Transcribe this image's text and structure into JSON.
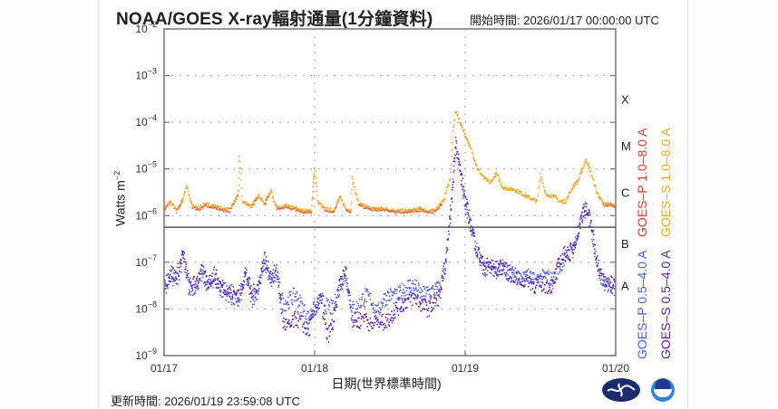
{
  "header": {
    "title": "NOAA/GOES X-ray輻射通量(1分鐘資料)",
    "start_label": "開始時間: 2026/01/17 00:00:00 UTC"
  },
  "footer": {
    "updated_label": "更新時間: 2026/01/19 23:59:08 UTC",
    "logos": [
      "cwa-logo-icon",
      "noaa-logo-icon"
    ]
  },
  "colors": {
    "goes_p_long": "#e8392e",
    "goes_s_long": "#f5a623",
    "goes_p_short": "#4a5cf0",
    "goes_s_short": "#5b1fb0",
    "frame": "#777777",
    "grid": "#999999"
  },
  "chart_data": {
    "type": "scatter",
    "title": "NOAA/GOES X-ray輻射通量(1分鐘資料)",
    "xlabel": "日期(世界標準時間)",
    "ylabel": "Watts m⁻²",
    "yscale": "log",
    "ylim": [
      1e-09,
      0.01
    ],
    "xlim": [
      0,
      72
    ],
    "x_unit": "hours since 2026/01/17 00:00 UTC",
    "x_ticks": [
      {
        "x": 0,
        "label": "01/17"
      },
      {
        "x": 24,
        "label": "01/18"
      },
      {
        "x": 48,
        "label": "01/19"
      },
      {
        "x": 72,
        "label": "01/20"
      }
    ],
    "y_ticks": [
      {
        "exp": -2,
        "label": "10",
        "sup": "−2"
      },
      {
        "exp": -3,
        "label": "10",
        "sup": "−3"
      },
      {
        "exp": -4,
        "label": "10",
        "sup": "−4"
      },
      {
        "exp": -5,
        "label": "10",
        "sup": "−5"
      },
      {
        "exp": -6,
        "label": "10",
        "sup": "−6"
      },
      {
        "exp": -7,
        "label": "10",
        "sup": "−7"
      },
      {
        "exp": -8,
        "label": "10",
        "sup": "−8"
      },
      {
        "exp": -9,
        "label": "10",
        "sup": "−9"
      }
    ],
    "flare_classes": [
      {
        "label": "X",
        "exp": -3.5
      },
      {
        "label": "M",
        "exp": -4.5
      },
      {
        "label": "C",
        "exp": -5.5
      },
      {
        "label": "B",
        "exp": -6.6
      },
      {
        "label": "A",
        "exp": -7.5
      }
    ],
    "grid": true,
    "legend": [
      {
        "name": "GOES–P 1.0–8.0 A",
        "color": "#e8392e"
      },
      {
        "name": "GOES–S 1.0–8.0 A",
        "color": "#f5a623"
      },
      {
        "name": "GOES–P 0.5–4.0 A",
        "color": "#4a5cf0"
      },
      {
        "name": "GOES–S 0.5–4.0 A",
        "color": "#5b1fb0"
      }
    ],
    "series": [
      {
        "name": "GOES–S 1.0–8.0 A",
        "color": "#f5a623",
        "x": [
          0,
          1,
          2,
          3,
          3.6,
          4.5,
          5.5,
          6.5,
          8,
          9,
          10.5,
          11.9,
          12,
          12.5,
          14,
          15,
          16,
          17,
          18,
          19.5,
          21,
          22,
          23.5,
          23.8,
          24,
          24.5,
          25.5,
          27,
          28,
          29,
          29.8,
          30,
          31,
          33,
          35,
          37,
          39,
          41,
          42,
          43,
          44.5,
          45.6,
          46,
          46.5,
          47.5,
          49,
          50,
          51,
          52,
          53,
          54,
          56,
          58,
          59.5,
          60,
          61,
          62,
          63,
          64,
          65.3,
          66,
          67.3,
          68,
          69,
          70,
          71,
          72
        ],
        "log10": [
          -5.85,
          -5.7,
          -5.9,
          -5.65,
          -5.35,
          -5.8,
          -5.85,
          -5.75,
          -5.8,
          -5.85,
          -5.88,
          -5.5,
          -4.7,
          -5.7,
          -5.8,
          -5.55,
          -5.75,
          -5.45,
          -5.85,
          -5.8,
          -5.85,
          -5.9,
          -5.9,
          -5.3,
          -4.95,
          -5.7,
          -5.85,
          -5.9,
          -5.6,
          -5.85,
          -5.9,
          -5.2,
          -5.75,
          -5.85,
          -5.85,
          -5.9,
          -5.9,
          -5.85,
          -5.9,
          -5.9,
          -5.7,
          -5.2,
          -4.3,
          -3.75,
          -4.1,
          -4.6,
          -5.0,
          -5.2,
          -5.3,
          -5.1,
          -5.4,
          -5.45,
          -5.6,
          -5.7,
          -5.1,
          -5.6,
          -5.55,
          -5.7,
          -5.7,
          -5.35,
          -5.25,
          -4.8,
          -5.05,
          -5.5,
          -5.75,
          -5.75,
          -5.8
        ]
      },
      {
        "name": "GOES–P 0.5–4.0 A",
        "color": "#4a5cf0",
        "x": [
          0,
          1,
          2,
          3,
          4,
          5,
          6,
          7,
          8,
          9,
          10,
          11,
          12,
          13,
          14,
          15,
          16,
          17,
          18,
          19,
          20,
          21,
          22,
          23,
          24,
          25,
          26,
          27,
          28,
          29,
          30,
          31,
          32,
          33,
          34,
          35,
          36,
          37,
          38,
          39,
          40,
          41,
          42,
          43,
          44,
          45,
          46,
          46.5,
          47,
          48,
          49,
          50,
          51,
          52,
          53,
          54,
          55,
          56,
          57,
          58,
          59,
          60,
          61,
          62,
          63,
          64,
          65,
          66,
          67,
          68,
          69,
          70,
          71,
          72
        ],
        "log10": [
          -7.6,
          -7.3,
          -7.4,
          -6.9,
          -7.6,
          -7.5,
          -7.3,
          -7.5,
          -7.35,
          -7.6,
          -7.65,
          -7.8,
          -7.85,
          -7.3,
          -7.8,
          -7.6,
          -7.0,
          -7.4,
          -7.3,
          -7.9,
          -7.8,
          -7.7,
          -7.95,
          -8.2,
          -8.0,
          -7.8,
          -7.95,
          -8.0,
          -7.5,
          -7.3,
          -8.0,
          -7.95,
          -7.7,
          -7.8,
          -8.1,
          -7.8,
          -7.7,
          -7.75,
          -7.6,
          -7.5,
          -7.5,
          -7.7,
          -7.65,
          -7.6,
          -7.55,
          -7.0,
          -5.5,
          -4.45,
          -4.9,
          -5.7,
          -6.3,
          -6.8,
          -7.15,
          -7.1,
          -7.2,
          -7.1,
          -7.2,
          -7.3,
          -7.35,
          -7.3,
          -7.4,
          -7.35,
          -7.3,
          -7.4,
          -7.1,
          -6.9,
          -6.8,
          -6.4,
          -5.85,
          -6.2,
          -7.0,
          -7.45,
          -7.5,
          -7.55
        ]
      },
      {
        "name": "GOES–S 0.5–4.0 A",
        "color": "#5b1fb0",
        "x": [
          0,
          1,
          2,
          3,
          4,
          5,
          6,
          7,
          8,
          9,
          10,
          11,
          12,
          13,
          14,
          15,
          16,
          17,
          18,
          19,
          20,
          21,
          22,
          23,
          24,
          25,
          26,
          27,
          28,
          29,
          30,
          31,
          32,
          33,
          34,
          35,
          36,
          37,
          38,
          39,
          40,
          41,
          42,
          43,
          44,
          45,
          46,
          46.5,
          47,
          48,
          49,
          50,
          51,
          52,
          53,
          54,
          55,
          56,
          57,
          58,
          59,
          60,
          61,
          62,
          63,
          64,
          65,
          66,
          67,
          68,
          69,
          70,
          71,
          72
        ],
        "log10": [
          -7.5,
          -7.2,
          -7.3,
          -6.8,
          -7.5,
          -7.45,
          -7.2,
          -7.45,
          -7.25,
          -7.5,
          -7.55,
          -7.65,
          -7.7,
          -7.2,
          -7.7,
          -7.5,
          -6.9,
          -7.3,
          -7.2,
          -8.3,
          -8.4,
          -8.2,
          -8.3,
          -8.5,
          -8.0,
          -7.8,
          -8.6,
          -8.3,
          -7.45,
          -7.2,
          -8.2,
          -8.3,
          -8.1,
          -8.4,
          -8.2,
          -8.3,
          -8.2,
          -8.0,
          -7.9,
          -7.8,
          -7.75,
          -7.9,
          -8.0,
          -7.9,
          -7.7,
          -6.9,
          -5.4,
          -4.4,
          -4.85,
          -5.65,
          -6.25,
          -6.8,
          -7.1,
          -7.05,
          -7.15,
          -7.1,
          -7.25,
          -7.3,
          -7.4,
          -7.35,
          -7.5,
          -7.45,
          -7.5,
          -7.5,
          -7.0,
          -6.8,
          -6.75,
          -6.35,
          -5.8,
          -6.1,
          -6.95,
          -7.4,
          -7.45,
          -7.5
        ]
      }
    ]
  }
}
